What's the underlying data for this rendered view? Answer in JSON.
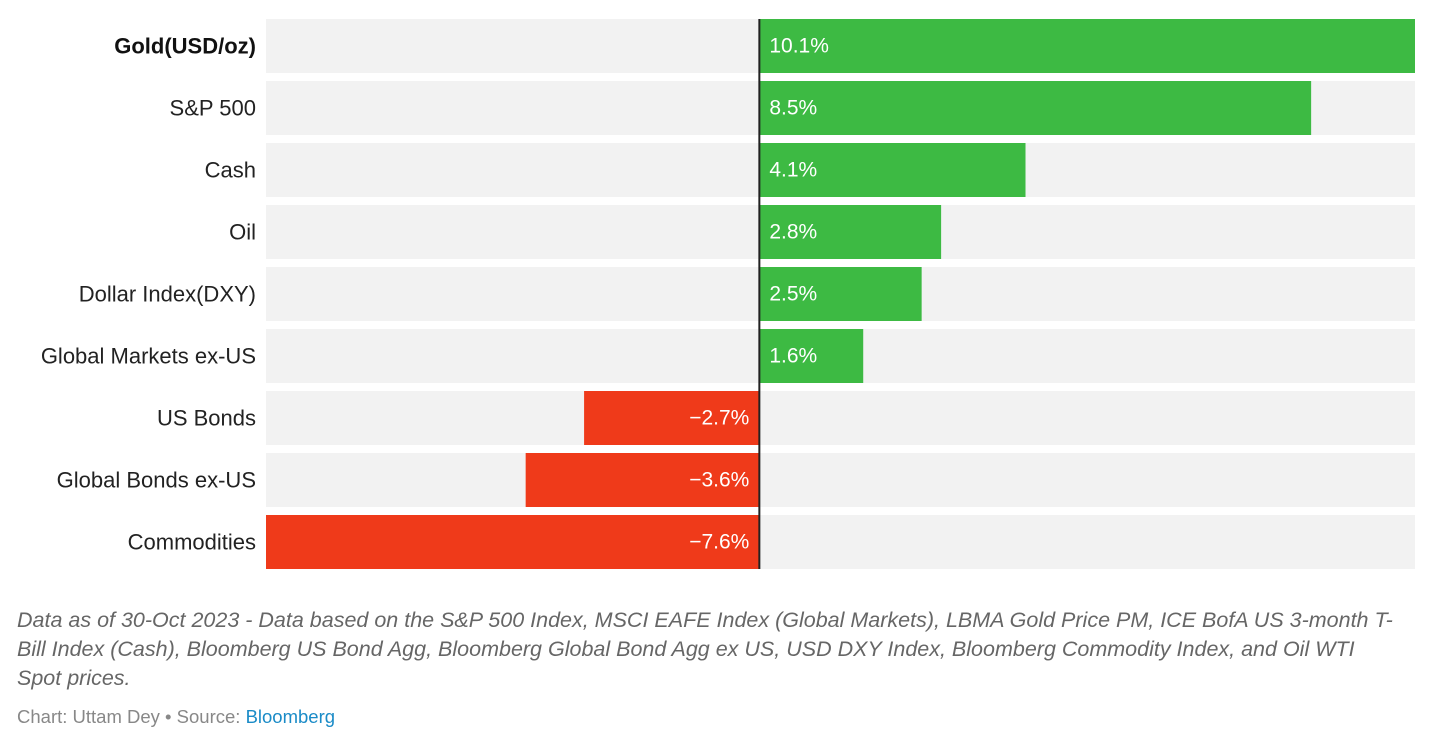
{
  "chart_data": {
    "type": "bar",
    "orientation": "horizontal",
    "categories": [
      "Gold(USD/oz)",
      "S&P 500",
      "Cash",
      "Oil",
      "Dollar Index(DXY)",
      "Global Markets ex-US",
      "US Bonds",
      "Global Bonds ex-US",
      "Commodities"
    ],
    "values": [
      10.1,
      8.5,
      4.1,
      2.8,
      2.5,
      1.6,
      -2.7,
      -3.6,
      -7.6
    ],
    "value_labels": [
      "10.1%",
      "8.5%",
      "4.1%",
      "2.8%",
      "2.5%",
      "1.6%",
      "−2.7%",
      "−3.6%",
      "−7.6%"
    ],
    "bold_categories": [
      "Gold(USD/oz)"
    ],
    "xlim": [
      -7.6,
      10.1
    ],
    "zero_line": true,
    "grid": false,
    "colors": {
      "positive": "#3dba43",
      "negative": "#ef3a1a",
      "row_background": "#f2f2f2",
      "zero_line": "#222222"
    }
  },
  "notes": "Data as of 30-Oct 2023 - Data based on the S&P 500 Index, MSCI EAFE Index (Global Markets), LBMA Gold Price PM, ICE BofA US 3-month T-Bill Index (Cash), Bloomberg US Bond Agg, Bloomberg Global Bond Agg ex US, USD DXY Index, Bloomberg Commodity Index, and Oil WTI Spot prices.",
  "footer": {
    "chart_prefix": "Chart: Uttam Dey • Source: ",
    "source_link": "Bloomberg"
  }
}
